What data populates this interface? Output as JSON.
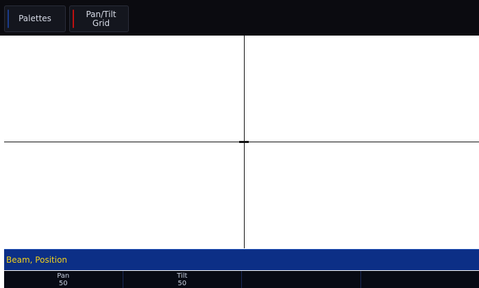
{
  "tabs": [
    {
      "label": "Palettes",
      "accent": "#1a3a8a"
    },
    {
      "label": "Pan/Tilt\nGrid",
      "accent": "#c01010"
    }
  ],
  "status": {
    "text": "Beam, Position",
    "text_color": "#f2d21a",
    "background": "#0c2f86"
  },
  "encoders": [
    {
      "name": "Pan",
      "value": "50"
    },
    {
      "name": "Tilt",
      "value": "50"
    },
    {
      "name": "",
      "value": ""
    },
    {
      "name": "",
      "value": ""
    }
  ]
}
